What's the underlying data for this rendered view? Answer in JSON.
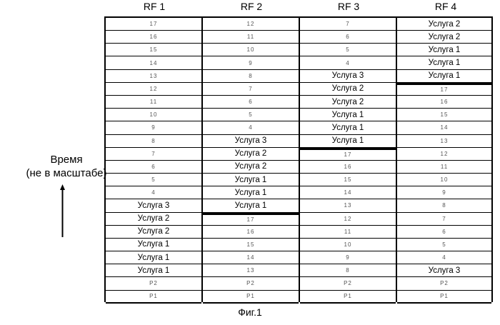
{
  "figure": {
    "caption": "Фиг.1",
    "time_axis_label": "Время\n(не в масштабе)",
    "columns": [
      {
        "header": "RF 1",
        "cells": [
          "17",
          "16",
          "15",
          "14",
          "13",
          "12",
          "11",
          "10",
          "9",
          "8",
          "7",
          "6",
          "5",
          "4",
          "Услуга 3",
          "Услуга 2",
          "Услуга 2",
          "Услуга 1",
          "Услуга 1",
          "Услуга 1",
          "P2",
          "P1"
        ]
      },
      {
        "header": "RF 2",
        "cells": [
          "12",
          "11",
          "10",
          "9",
          "8",
          "7",
          "6",
          "5",
          "4",
          "Услуга 3",
          "Услуга 2",
          "Услуга 2",
          "Услуга 1",
          "Услуга 1",
          "Услуга 1",
          "17",
          "16",
          "15",
          "14",
          "13",
          "P2",
          "P1"
        ]
      },
      {
        "header": "RF 3",
        "cells": [
          "7",
          "6",
          "5",
          "4",
          "Услуга 3",
          "Услуга 2",
          "Услуга 2",
          "Услуга 1",
          "Услуга 1",
          "Услуга 1",
          "17",
          "16",
          "15",
          "14",
          "13",
          "12",
          "11",
          "10",
          "9",
          "8",
          "P2",
          "P1"
        ]
      },
      {
        "header": "RF 4",
        "cells": [
          "Услуга 2",
          "Услуга 2",
          "Услуга 1",
          "Услуга 1",
          "Услуга 1",
          "17",
          "16",
          "15",
          "14",
          "13",
          "12",
          "11",
          "10",
          "9",
          "8",
          "7",
          "6",
          "5",
          "4",
          "Услуга 3",
          "P2",
          "P1"
        ]
      }
    ]
  }
}
